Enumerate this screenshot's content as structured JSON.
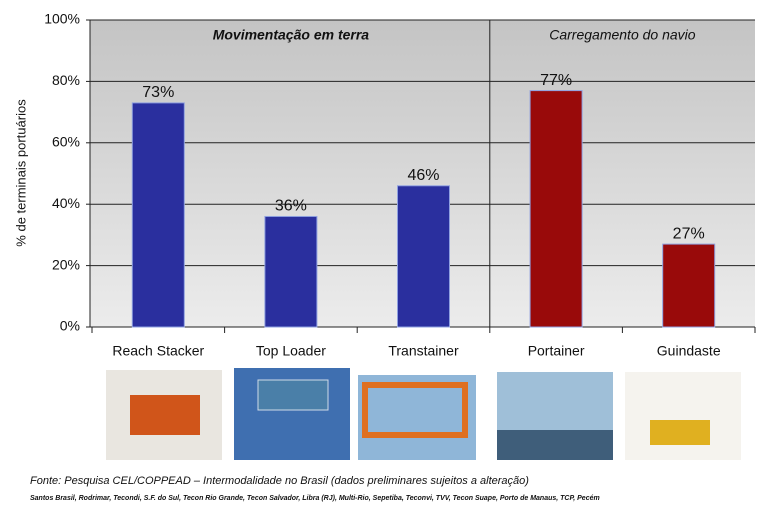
{
  "chart_data": {
    "type": "bar",
    "ylabel": "% de terminais portuários",
    "categories": [
      "Reach Stacker",
      "Top Loader",
      "Transtainer",
      "Portainer",
      "Guindaste"
    ],
    "values": [
      73,
      36,
      46,
      77,
      27
    ],
    "value_labels": [
      "73%",
      "36%",
      "46%",
      "77%",
      "27%"
    ],
    "colors": [
      "#2a2f9e",
      "#2a2f9e",
      "#2a2f9e",
      "#990a0a",
      "#990a0a"
    ],
    "groups": [
      {
        "label": "Movimentação em terra",
        "color": "#1f2a8a"
      },
      {
        "label": "Carregamento do navio",
        "color": "#b01010"
      }
    ],
    "ylim": [
      0,
      100
    ],
    "yticks": [
      {
        "value": 0,
        "label": "0%"
      },
      {
        "value": 20,
        "label": "20%"
      },
      {
        "value": 40,
        "label": "40%"
      },
      {
        "value": 60,
        "label": "60%"
      },
      {
        "value": 80,
        "label": "80%"
      },
      {
        "value": 100,
        "label": "100%"
      }
    ],
    "grid": true,
    "source": "Fonte: Pesquisa CEL/COPPEAD – Intermodalidade no Brasil (dados preliminares sujeitos a alteração)",
    "note": "Santos Brasil, Rodrimar, Tecondi, S.F. do Sul, Tecon Rio Grande, Tecon Salvador, Libra (RJ), Multi-Rio, Sepetiba, Teconvi, TVV, Tecon Suape, Porto de Manaus, TCP, Pecém"
  }
}
